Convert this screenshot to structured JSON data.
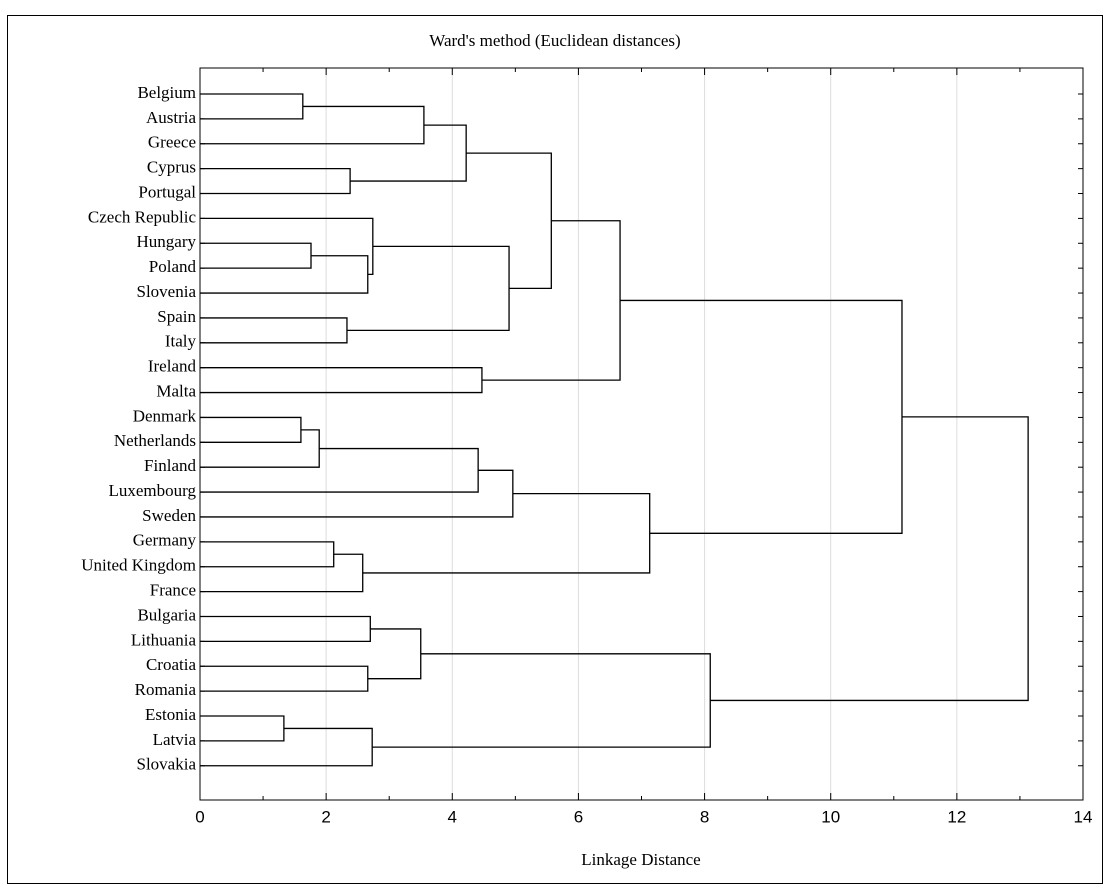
{
  "chart_data": {
    "type": "dendrogram",
    "title": "Ward's method (Euclidean distances)",
    "x_label": "Linkage Distance",
    "xlim": [
      0,
      14
    ],
    "xticks": [
      0,
      2,
      4,
      6,
      8,
      10,
      12,
      14
    ],
    "xminorticks": [
      1,
      3,
      5,
      7,
      9,
      11,
      13
    ],
    "grid": true,
    "color": "#000000",
    "tree": {
      "height": 13.13,
      "children": [
        {
          "height": 11.13,
          "children": [
            {
              "height": 6.66,
              "children": [
                {
                  "height": 5.57,
                  "children": [
                    {
                      "height": 4.22,
                      "children": [
                        {
                          "height": 3.55,
                          "children": [
                            {
                              "height": 1.63,
                              "children": [
                                "Belgium",
                                "Austria"
                              ]
                            },
                            "Greece"
                          ]
                        },
                        {
                          "height": 2.38,
                          "children": [
                            "Cyprus",
                            "Portugal"
                          ]
                        }
                      ]
                    },
                    {
                      "height": 4.9,
                      "children": [
                        {
                          "height": 2.74,
                          "children": [
                            "Czech Republic",
                            {
                              "height": 2.66,
                              "children": [
                                {
                                  "height": 1.76,
                                  "children": [
                                    "Hungary",
                                    "Poland"
                                  ]
                                },
                                "Slovenia"
                              ]
                            }
                          ]
                        },
                        {
                          "height": 2.33,
                          "children": [
                            "Spain",
                            "Italy"
                          ]
                        }
                      ]
                    }
                  ]
                },
                {
                  "height": 4.47,
                  "children": [
                    "Ireland",
                    "Malta"
                  ]
                }
              ]
            },
            {
              "height": 7.13,
              "children": [
                {
                  "height": 4.96,
                  "children": [
                    {
                      "height": 4.41,
                      "children": [
                        {
                          "height": 1.89,
                          "children": [
                            {
                              "height": 1.6,
                              "children": [
                                "Denmark",
                                "Netherlands"
                              ]
                            },
                            "Finland"
                          ]
                        },
                        "Luxembourg"
                      ]
                    },
                    "Sweden"
                  ]
                },
                {
                  "height": 2.58,
                  "children": [
                    {
                      "height": 2.12,
                      "children": [
                        "Germany",
                        "United Kingdom"
                      ]
                    },
                    "France"
                  ]
                }
              ]
            }
          ]
        },
        {
          "height": 8.09,
          "children": [
            {
              "height": 3.5,
              "children": [
                {
                  "height": 2.7,
                  "children": [
                    "Bulgaria",
                    "Lithuania"
                  ]
                },
                {
                  "height": 2.66,
                  "children": [
                    "Croatia",
                    "Romania"
                  ]
                }
              ]
            },
            {
              "height": 2.73,
              "children": [
                {
                  "height": 1.33,
                  "children": [
                    "Estonia",
                    "Latvia"
                  ]
                },
                "Slovakia"
              ]
            }
          ]
        }
      ]
    }
  }
}
